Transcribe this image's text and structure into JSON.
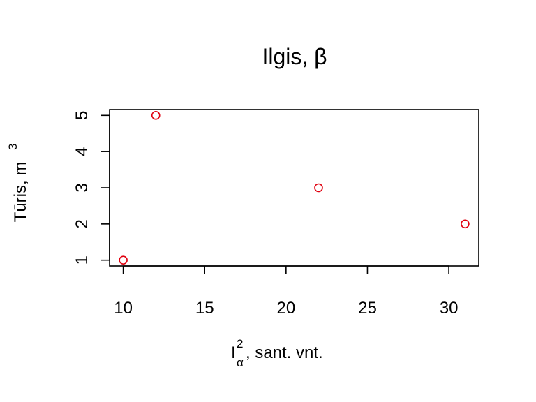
{
  "chart_data": {
    "type": "scatter",
    "title": "Ilgis, β",
    "xlabel": {
      "base": "I",
      "superscript": "2",
      "subscript": "α",
      "rest": ", sant. vnt."
    },
    "ylabel": {
      "text": "Tūris, m",
      "superscript": "3"
    },
    "xlim": [
      9.16,
      31.84
    ],
    "ylim": [
      0.84,
      5.16
    ],
    "xticks": [
      10,
      15,
      20,
      25,
      30
    ],
    "yticks": [
      1,
      2,
      3,
      4,
      5
    ],
    "grid": false,
    "marker_color": "#e0000f",
    "points": [
      {
        "x": 10,
        "y": 1
      },
      {
        "x": 12,
        "y": 5
      },
      {
        "x": 22,
        "y": 3
      },
      {
        "x": 31,
        "y": 2
      }
    ]
  }
}
